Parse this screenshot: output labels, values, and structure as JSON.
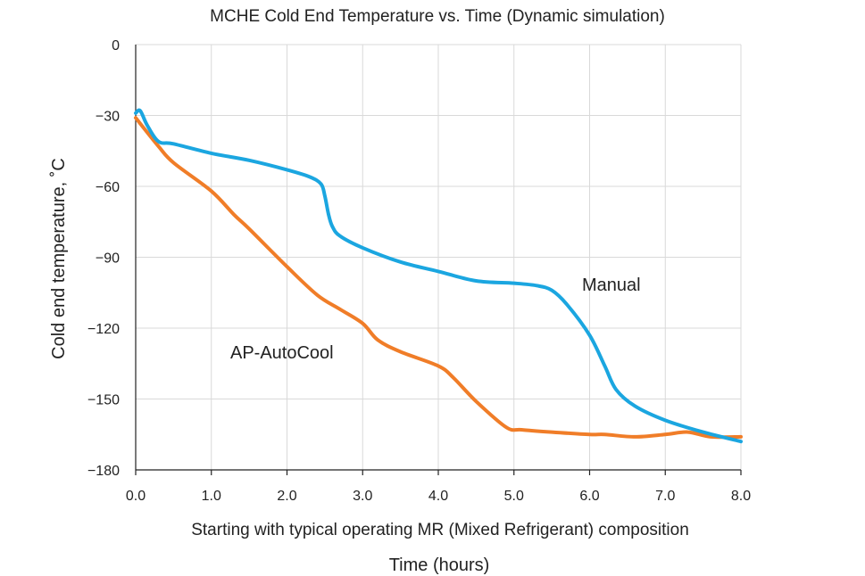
{
  "chart_data": {
    "type": "line",
    "title": "MCHE Cold End Temperature vs. Time (Dynamic simulation)",
    "xlabel": "Time (hours)",
    "subtitle": "Starting with typical operating MR (Mixed Refrigerant) composition",
    "ylabel": "Cold end temperature, ˚C",
    "xlim": [
      0,
      8
    ],
    "ylim": [
      -180,
      0
    ],
    "x_ticks": [
      0,
      1,
      2,
      3,
      4,
      5,
      6,
      7,
      8
    ],
    "x_tick_labels": [
      "0.0",
      "1.0",
      "2.0",
      "3.0",
      "4.0",
      "5.0",
      "6.0",
      "7.0",
      "8.0"
    ],
    "y_ticks": [
      0,
      -30,
      -60,
      -90,
      -120,
      -150,
      -180
    ],
    "y_tick_labels": [
      "0",
      "−30",
      "−60",
      "−90",
      "−120",
      "−150",
      "−180"
    ],
    "grid": true,
    "series": [
      {
        "name": "Manual",
        "color": "#1ba6e0",
        "x": [
          0.0,
          0.06,
          0.15,
          0.3,
          0.5,
          1.0,
          1.5,
          2.0,
          2.3,
          2.45,
          2.5,
          2.55,
          2.6,
          2.7,
          3.0,
          3.5,
          4.0,
          4.5,
          5.0,
          5.3,
          5.5,
          5.7,
          6.0,
          6.2,
          6.35,
          6.6,
          7.0,
          7.5,
          8.0
        ],
        "values": [
          -29,
          -28,
          -34,
          -41,
          -42,
          -46,
          -49,
          -53,
          -56,
          -59,
          -64,
          -72,
          -77,
          -81,
          -86,
          -92,
          -96,
          -100,
          -101,
          -102,
          -104,
          -110,
          -123,
          -136,
          -146,
          -153,
          -159,
          -164,
          -168
        ]
      },
      {
        "name": "AP-AutoCool",
        "color": "#f07d28",
        "x": [
          0.0,
          0.3,
          0.5,
          1.0,
          1.3,
          1.5,
          2.0,
          2.4,
          2.7,
          3.0,
          3.2,
          3.5,
          4.0,
          4.2,
          4.5,
          4.9,
          5.1,
          5.5,
          6.0,
          6.2,
          6.6,
          7.0,
          7.3,
          7.6,
          8.0
        ],
        "values": [
          -31,
          -43,
          -50,
          -62,
          -72,
          -78,
          -94,
          -106,
          -112,
          -118,
          -125,
          -130,
          -136,
          -141,
          -151,
          -162,
          -163,
          -164,
          -165,
          -165,
          -166,
          -165,
          -164,
          -166,
          -166
        ]
      }
    ]
  }
}
